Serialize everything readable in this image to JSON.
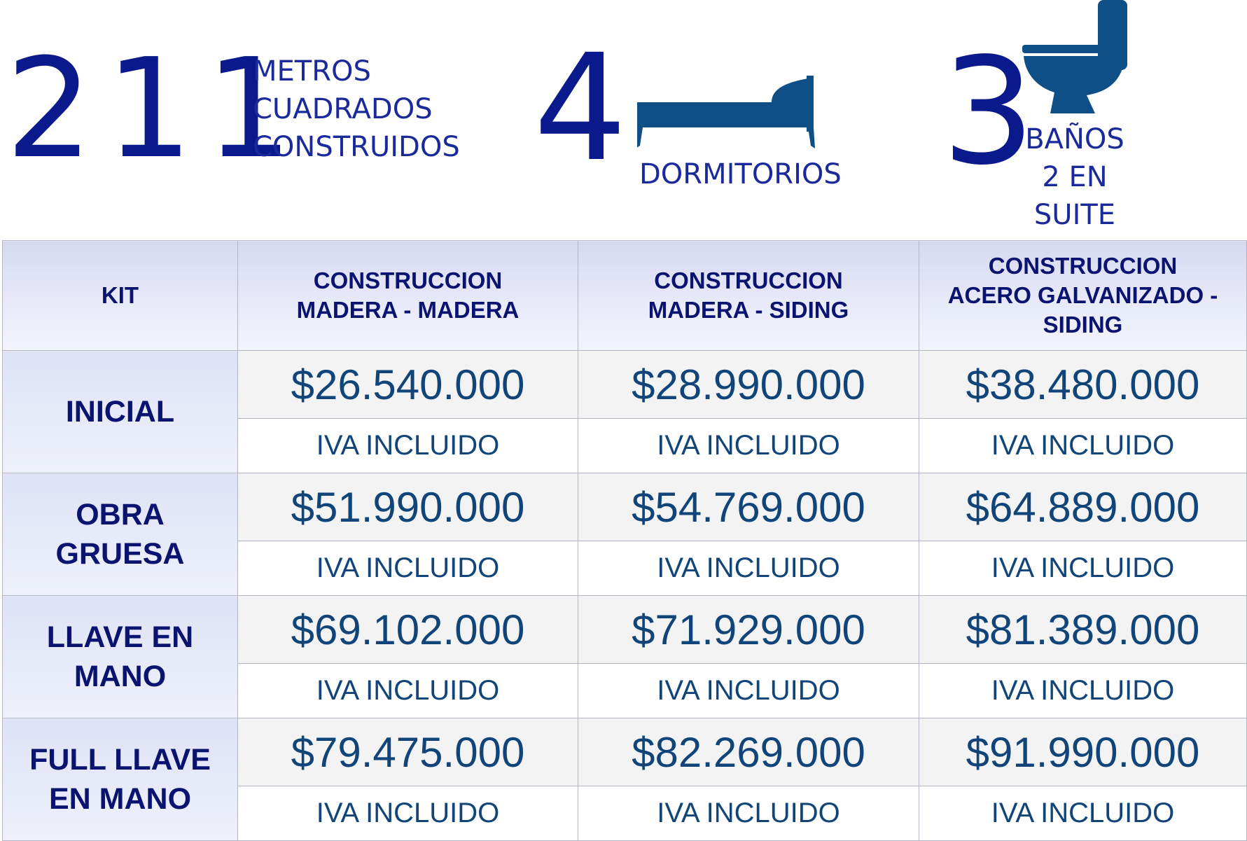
{
  "stats": {
    "area": {
      "value": "211",
      "label_lines": [
        "METROS",
        "CUADRADOS",
        "CONSTRUIDOS"
      ]
    },
    "bedrooms": {
      "value": "4",
      "label": "DORMITORIOS",
      "icon": "bed-icon"
    },
    "baths": {
      "value": "3",
      "label_lines": [
        "BAÑOS",
        "2 EN",
        "SUITE"
      ],
      "icon": "toilet-icon"
    }
  },
  "table": {
    "headers": {
      "kit": "KIT",
      "col1": [
        "CONSTRUCCION",
        "MADERA - MADERA"
      ],
      "col2": [
        "CONSTRUCCION",
        "MADERA - SIDING"
      ],
      "col3": [
        "CONSTRUCCION",
        "ACERO GALVANIZADO -",
        "SIDING"
      ]
    },
    "rows": [
      {
        "kit_lines": [
          "INICIAL"
        ],
        "prices": [
          "$26.540.000",
          "$28.990.000",
          "$38.480.000"
        ],
        "notes": [
          "IVA INCLUIDO",
          "IVA INCLUIDO",
          "IVA INCLUIDO"
        ]
      },
      {
        "kit_lines": [
          "OBRA",
          "GRUESA"
        ],
        "prices": [
          "$51.990.000",
          "$54.769.000",
          "$64.889.000"
        ],
        "notes": [
          "IVA INCLUIDO",
          "IVA INCLUIDO",
          "IVA INCLUIDO"
        ]
      },
      {
        "kit_lines": [
          "LLAVE EN",
          "MANO"
        ],
        "prices": [
          "$69.102.000",
          "$71.929.000",
          "$81.389.000"
        ],
        "notes": [
          "IVA INCLUIDO",
          "IVA INCLUIDO",
          "IVA INCLUIDO"
        ]
      },
      {
        "kit_lines": [
          "FULL LLAVE",
          "EN MANO"
        ],
        "prices": [
          "$79.475.000",
          "$82.269.000",
          "$91.990.000"
        ],
        "notes": [
          "IVA INCLUIDO",
          "IVA INCLUIDO",
          "IVA INCLUIDO"
        ]
      }
    ]
  },
  "colors": {
    "stat_number": "#0a1a8c",
    "icon_fill": "#0d4f86",
    "header_text": "#0a1470",
    "price_text": "#11457a"
  }
}
